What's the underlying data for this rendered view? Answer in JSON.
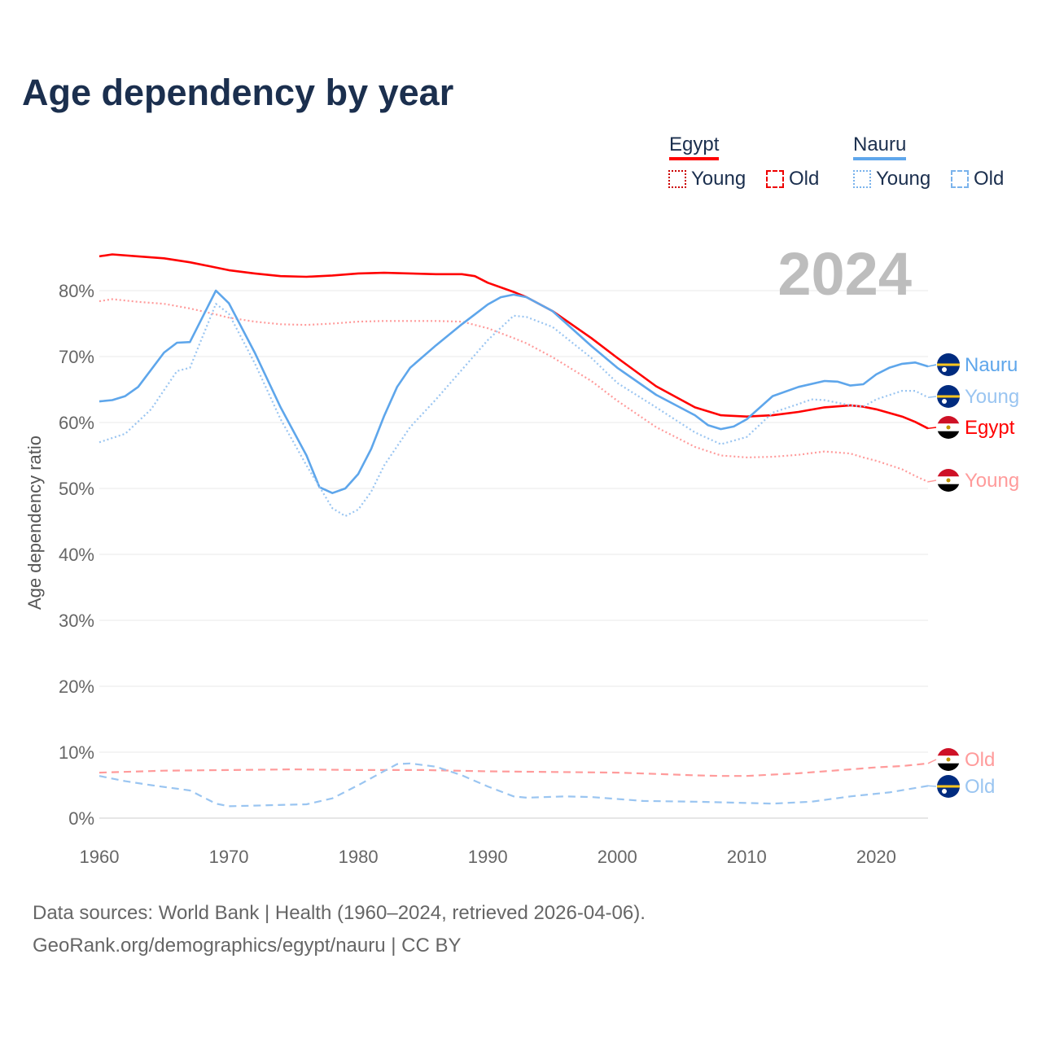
{
  "title": "Age dependency by year",
  "year_display": "2024",
  "legend": {
    "groups": [
      {
        "country": "Egypt",
        "color": "#ff0000",
        "items": [
          "Young",
          "Old"
        ]
      },
      {
        "country": "Nauru",
        "color": "#5ea6eb",
        "items": [
          "Young",
          "Old"
        ]
      }
    ]
  },
  "sources": {
    "line1": "Data sources: World Bank | Health (1960–2024, retrieved 2026-04-06).",
    "line2": "GeoRank.org/demographics/egypt/nauru | CC BY"
  },
  "chart_data": {
    "type": "line",
    "title": "Age dependency by year",
    "xlabel": "",
    "ylabel": "Age dependency ratio",
    "xlim": [
      1960,
      2024
    ],
    "ylim": [
      0,
      85
    ],
    "x_ticks": [
      "1960",
      "1970",
      "1980",
      "1990",
      "2000",
      "2010",
      "2020"
    ],
    "y_ticks": [
      "0%",
      "10%",
      "20%",
      "30%",
      "40%",
      "50%",
      "60%",
      "70%",
      "80%"
    ],
    "grid": true,
    "legend_position": "top-right",
    "series": [
      {
        "name": "Egypt",
        "end_label": "Egypt",
        "color": "#ff0000",
        "style": "solid",
        "x": [
          1960,
          1961,
          1963,
          1965,
          1967,
          1969,
          1970,
          1972,
          1974,
          1976,
          1978,
          1980,
          1982,
          1984,
          1986,
          1988,
          1989,
          1990,
          1992,
          1993,
          1995,
          1998,
          2000,
          2003,
          2006,
          2008,
          2010,
          2012,
          2014,
          2016,
          2018,
          2019,
          2020,
          2022,
          2023,
          2024
        ],
        "values": [
          85.2,
          85.5,
          85.2,
          84.9,
          84.3,
          83.5,
          83.1,
          82.6,
          82.2,
          82.1,
          82.3,
          82.6,
          82.7,
          82.6,
          82.5,
          82.5,
          82.2,
          81.2,
          79.8,
          79.0,
          76.9,
          72.8,
          69.8,
          65.5,
          62.3,
          61.1,
          60.9,
          61.1,
          61.6,
          62.3,
          62.6,
          62.4,
          62.0,
          60.9,
          60.1,
          59.1
        ]
      },
      {
        "name": "Egypt Young",
        "end_label": "Young",
        "color": "#ff9b9b",
        "style": "dotted",
        "x": [
          1960,
          1961,
          1963,
          1965,
          1967,
          1969,
          1970,
          1972,
          1974,
          1976,
          1978,
          1980,
          1982,
          1984,
          1986,
          1988,
          1990,
          1992,
          1993,
          1995,
          1998,
          2000,
          2003,
          2006,
          2008,
          2010,
          2012,
          2014,
          2016,
          2018,
          2019,
          2020,
          2022,
          2023,
          2024
        ],
        "values": [
          78.4,
          78.7,
          78.3,
          78.0,
          77.3,
          76.4,
          75.9,
          75.3,
          74.9,
          74.8,
          75.0,
          75.3,
          75.4,
          75.4,
          75.4,
          75.3,
          74.3,
          72.8,
          72.0,
          69.9,
          66.3,
          63.3,
          59.3,
          56.3,
          55.0,
          54.7,
          54.8,
          55.1,
          55.6,
          55.3,
          54.7,
          54.2,
          52.9,
          51.9,
          51.0
        ]
      },
      {
        "name": "Egypt Old",
        "end_label": "Old",
        "color": "#ff9b9b",
        "style": "dashed",
        "x": [
          1960,
          1965,
          1970,
          1975,
          1980,
          1985,
          1990,
          1995,
          2000,
          2003,
          2006,
          2008,
          2010,
          2012,
          2014,
          2016,
          2018,
          2020,
          2022,
          2024
        ],
        "values": [
          6.9,
          7.2,
          7.3,
          7.4,
          7.3,
          7.3,
          7.1,
          7.0,
          6.9,
          6.7,
          6.5,
          6.4,
          6.4,
          6.6,
          6.8,
          7.1,
          7.4,
          7.7,
          7.9,
          8.3
        ]
      },
      {
        "name": "Nauru",
        "end_label": "Nauru",
        "color": "#5ea6eb",
        "style": "solid",
        "x": [
          1960,
          1961,
          1962,
          1963,
          1965,
          1966,
          1967,
          1969,
          1970,
          1972,
          1974,
          1976,
          1977,
          1978,
          1979,
          1980,
          1981,
          1982,
          1983,
          1984,
          1986,
          1988,
          1989,
          1990,
          1991,
          1992,
          1993,
          1995,
          1998,
          2000,
          2003,
          2006,
          2007,
          2008,
          2009,
          2010,
          2012,
          2014,
          2016,
          2017,
          2018,
          2019,
          2020,
          2021,
          2022,
          2023,
          2024
        ],
        "values": [
          63.2,
          63.4,
          64.0,
          65.4,
          70.6,
          72.1,
          72.2,
          80.0,
          78.1,
          70.6,
          62.3,
          55.0,
          50.2,
          49.3,
          50.0,
          52.2,
          56.0,
          61.0,
          65.4,
          68.3,
          71.7,
          74.9,
          76.4,
          77.9,
          79.0,
          79.4,
          79.0,
          76.9,
          71.6,
          68.3,
          64.2,
          61.1,
          59.6,
          59.0,
          59.4,
          60.5,
          64.0,
          65.4,
          66.3,
          66.2,
          65.6,
          65.8,
          67.3,
          68.3,
          68.9,
          69.1,
          68.5
        ]
      },
      {
        "name": "Nauru Young",
        "end_label": "Young",
        "color": "#9ac5f1",
        "style": "dotted",
        "x": [
          1960,
          1962,
          1964,
          1966,
          1967,
          1969,
          1970,
          1972,
          1974,
          1976,
          1978,
          1979,
          1980,
          1981,
          1982,
          1984,
          1986,
          1988,
          1990,
          1992,
          1993,
          1995,
          1998,
          2000,
          2003,
          2006,
          2008,
          2010,
          2012,
          2014,
          2015,
          2016,
          2018,
          2019,
          2020,
          2022,
          2023,
          2024
        ],
        "values": [
          57.0,
          58.3,
          62.0,
          67.8,
          68.3,
          78.0,
          76.5,
          69.0,
          60.5,
          53.5,
          47.0,
          45.8,
          46.8,
          49.5,
          53.5,
          59.3,
          63.5,
          68.0,
          72.5,
          76.2,
          76.0,
          74.5,
          69.8,
          66.0,
          62.3,
          58.5,
          56.7,
          57.8,
          61.5,
          62.8,
          63.5,
          63.4,
          62.6,
          62.4,
          63.5,
          64.8,
          64.8,
          63.8
        ]
      },
      {
        "name": "Nauru Old",
        "end_label": "Old",
        "color": "#9ac5f1",
        "style": "dashed",
        "x": [
          1960,
          1962,
          1964,
          1967,
          1969,
          1970,
          1972,
          1976,
          1978,
          1980,
          1983,
          1984,
          1986,
          1988,
          1990,
          1992,
          1993,
          1996,
          1998,
          2002,
          2006,
          2010,
          2012,
          2015,
          2018,
          2021,
          2024
        ],
        "values": [
          6.4,
          5.6,
          5.0,
          4.2,
          2.2,
          1.8,
          1.9,
          2.1,
          3.0,
          5.0,
          8.2,
          8.3,
          7.8,
          6.5,
          4.8,
          3.3,
          3.1,
          3.3,
          3.2,
          2.6,
          2.5,
          2.3,
          2.2,
          2.5,
          3.3,
          3.9,
          4.9
        ]
      }
    ]
  }
}
